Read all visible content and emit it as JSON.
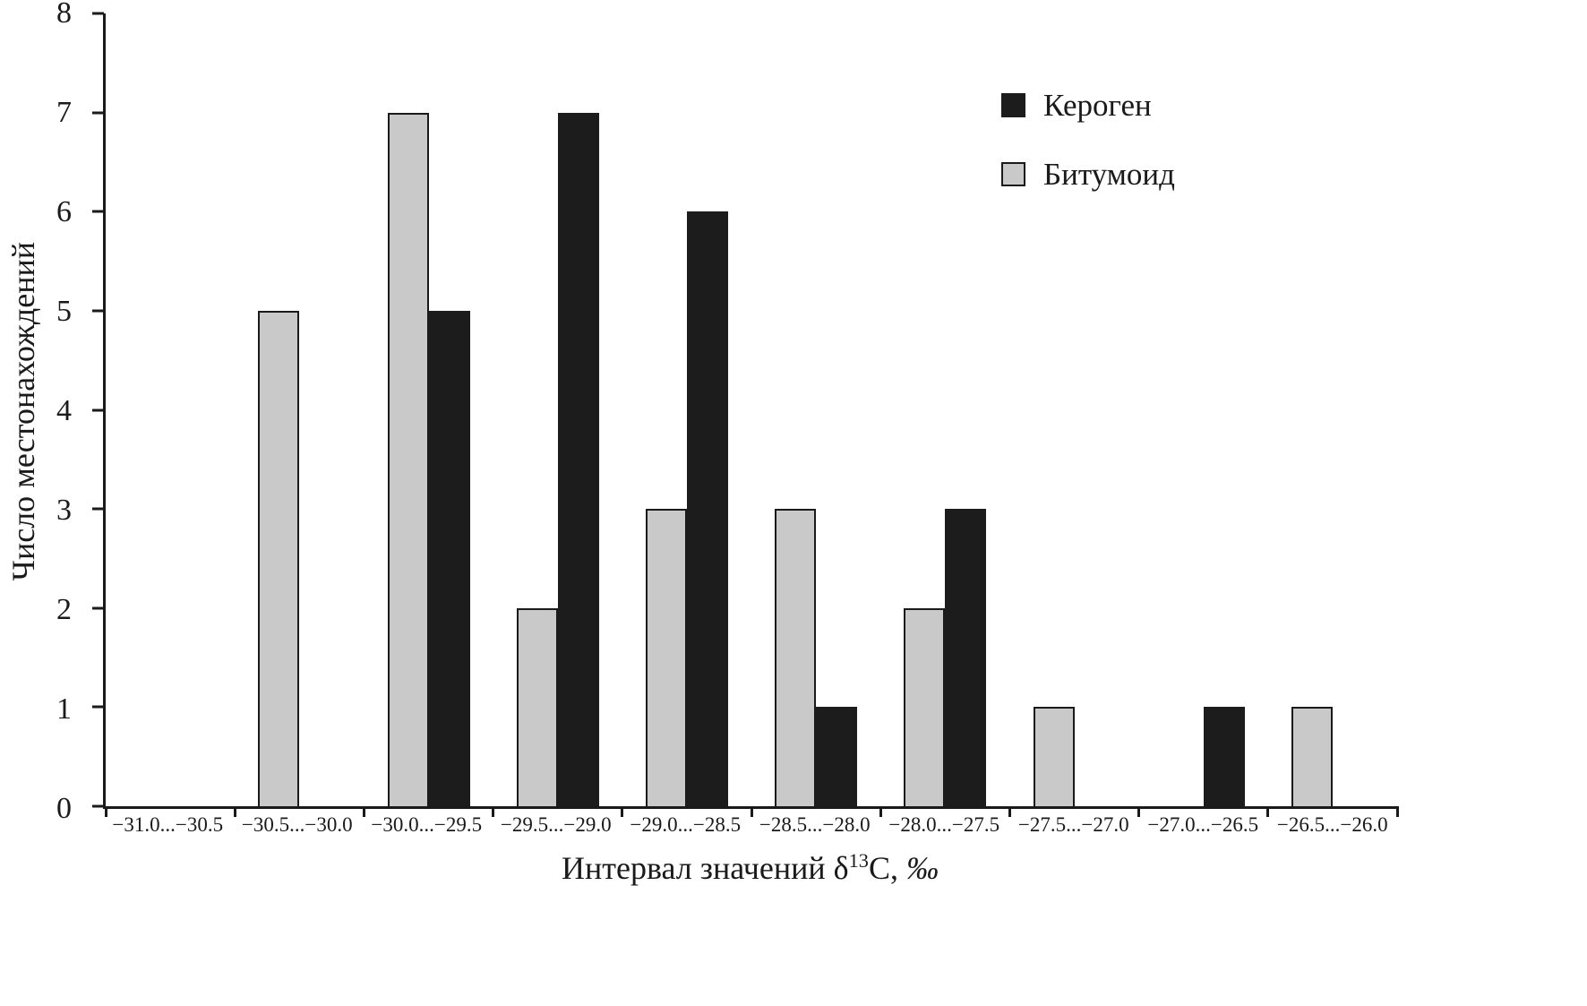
{
  "chart_data": {
    "type": "bar",
    "title": "",
    "xlabel": "Интервал значений δ13C, ‰",
    "ylabel": "Число местонахождений",
    "ylim": [
      0,
      8
    ],
    "yticks": [
      0,
      1,
      2,
      3,
      4,
      5,
      6,
      7,
      8
    ],
    "grid": false,
    "legend_position": "top-right",
    "categories": [
      "−31.0...−30.5",
      "−30.5...−30.0",
      "−30.0...−29.5",
      "−29.5...−29.0",
      "−29.0...−28.5",
      "−28.5...−28.0",
      "−28.0...−27.5",
      "−27.5...−27.0",
      "−27.0...−26.5",
      "−26.5...−26.0"
    ],
    "series": [
      {
        "name": "Кероген",
        "color": "#1c1c1c",
        "outline": false,
        "values": [
          0,
          0,
          5,
          7,
          6,
          1,
          3,
          0,
          1,
          0
        ]
      },
      {
        "name": "Битумоид",
        "color": "#c9c9c9",
        "outline": true,
        "values": [
          0,
          5,
          7,
          2,
          3,
          3,
          2,
          1,
          0,
          1
        ]
      }
    ],
    "series_display_order": [
      "Битумоид",
      "Кероген"
    ]
  },
  "labels": {
    "ylabel": "Число местонахождений",
    "xlabel_prefix": "Интервал значений δ",
    "xlabel_sup": "13",
    "xlabel_mid": "C, ",
    "xlabel_permille": "‰"
  },
  "legend": {
    "items": [
      {
        "label": "Кероген",
        "color": "#1c1c1c",
        "outline": false
      },
      {
        "label": "Битумоид",
        "color": "#c9c9c9",
        "outline": true
      }
    ]
  },
  "colors": {
    "axis": "#1a1a1a",
    "kerogen": "#1c1c1c",
    "bitumoid": "#c9c9c9",
    "background": "#ffffff"
  }
}
